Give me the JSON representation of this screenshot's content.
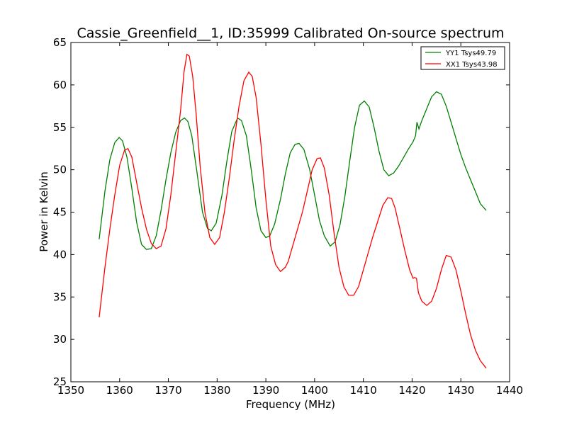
{
  "chart_data": {
    "type": "line",
    "title": "Cassie_Greenfield__1, ID:35999 Calibrated On-source spectrum",
    "xlabel": "Frequency (MHz)",
    "ylabel": "Power in Kelvin",
    "xlim": [
      1350,
      1440
    ],
    "ylim": [
      25,
      65
    ],
    "xticks": [
      1350,
      1360,
      1370,
      1380,
      1390,
      1400,
      1410,
      1420,
      1430,
      1440
    ],
    "yticks": [
      25,
      30,
      35,
      40,
      45,
      50,
      55,
      60,
      65
    ],
    "xtick_labels": [
      "1350",
      "1360",
      "1370",
      "1380",
      "1390",
      "1400",
      "1410",
      "1420",
      "1430",
      "1440"
    ],
    "ytick_labels": [
      "25",
      "30",
      "35",
      "40",
      "45",
      "50",
      "55",
      "60",
      "65"
    ],
    "grid": false,
    "legend_position": "top-right",
    "series": [
      {
        "name": "YY1 Tsys49.79",
        "color": "#008000",
        "x": [
          1355.8,
          1357,
          1358,
          1359,
          1359.9,
          1360.6,
          1361.5,
          1362.5,
          1363.5,
          1364.5,
          1365.5,
          1366.5,
          1367.5,
          1368.5,
          1369.5,
          1370.5,
          1371.5,
          1372.5,
          1373.3,
          1374,
          1374.8,
          1375.8,
          1377,
          1378,
          1378.8,
          1379.8,
          1381,
          1382,
          1383,
          1384.2,
          1385,
          1386,
          1387,
          1388,
          1389,
          1390,
          1390.8,
          1391.8,
          1393,
          1394,
          1395,
          1396,
          1396.8,
          1397.8,
          1399,
          1400,
          1401,
          1402,
          1403.2,
          1404.2,
          1405.2,
          1406.2,
          1407.2,
          1408.2,
          1409.2,
          1410.2,
          1411.2,
          1412.2,
          1413.2,
          1414.2,
          1415.2,
          1416.2,
          1417.2,
          1418.2,
          1419.2,
          1420.2,
          1420.7,
          1421,
          1421.4,
          1422,
          1423,
          1424,
          1425,
          1426,
          1427,
          1428,
          1429,
          1430,
          1431,
          1432,
          1433,
          1434,
          1435.2
        ],
        "y": [
          41.8,
          47.5,
          51.2,
          53.2,
          53.8,
          53.4,
          51.5,
          47.8,
          43.8,
          41.2,
          40.6,
          40.7,
          42.2,
          45.2,
          48.8,
          52.0,
          54.4,
          55.8,
          56.1,
          55.7,
          54.0,
          50.0,
          45.0,
          43.1,
          42.8,
          43.7,
          47.0,
          51.0,
          54.5,
          56.1,
          55.8,
          54.0,
          50.0,
          45.5,
          42.8,
          42.0,
          42.2,
          43.6,
          46.5,
          49.5,
          52.0,
          53.0,
          53.1,
          52.4,
          50.0,
          47.0,
          44.0,
          42.2,
          41.0,
          41.5,
          43.5,
          46.8,
          51.0,
          55.0,
          57.6,
          58.1,
          57.4,
          55.0,
          52.2,
          50.0,
          49.3,
          49.6,
          50.4,
          51.4,
          52.4,
          53.3,
          54.0,
          55.6,
          54.8,
          55.8,
          57.2,
          58.6,
          59.2,
          58.9,
          57.5,
          55.6,
          53.7,
          51.8,
          50.2,
          48.8,
          47.4,
          46.0,
          45.2
        ]
      },
      {
        "name": "XX1 Tsys43.98",
        "color": "#ff0000",
        "x": [
          1355.8,
          1357,
          1358,
          1359,
          1360,
          1361,
          1361.7,
          1362.5,
          1363.5,
          1364.5,
          1365.5,
          1366.5,
          1367.5,
          1368.5,
          1369.5,
          1370.5,
          1371.5,
          1372.5,
          1373.2,
          1373.8,
          1374.3,
          1375,
          1375.7,
          1376.5,
          1377.5,
          1378.5,
          1379.5,
          1380.5,
          1381.5,
          1382.5,
          1383.5,
          1384.5,
          1385.5,
          1386.5,
          1387.2,
          1388,
          1389,
          1390,
          1391,
          1392,
          1393,
          1394,
          1394.6,
          1395.5,
          1396.5,
          1397.5,
          1398.5,
          1399.5,
          1400.5,
          1401.2,
          1402,
          1403,
          1404,
          1405,
          1406,
          1407,
          1408,
          1409,
          1410,
          1411,
          1412,
          1413,
          1414,
          1415,
          1415.8,
          1416.5,
          1417.5,
          1418.5,
          1419.5,
          1420.2,
          1420.5,
          1420.9,
          1421.3,
          1422,
          1423,
          1424,
          1425,
          1426,
          1427,
          1428,
          1429,
          1430,
          1431,
          1432,
          1433,
          1434,
          1435.2
        ],
        "y": [
          32.6,
          38.5,
          43.0,
          47.0,
          50.5,
          52.3,
          52.5,
          51.5,
          48.5,
          45.5,
          43.0,
          41.3,
          40.7,
          41.0,
          43.0,
          47.0,
          52.0,
          57.0,
          61.5,
          63.6,
          63.4,
          61.0,
          56.5,
          50.5,
          45.0,
          42.0,
          41.2,
          42.0,
          45.0,
          49.0,
          53.5,
          57.5,
          60.5,
          61.5,
          61.0,
          58.5,
          53.0,
          46.5,
          41.0,
          38.8,
          38.0,
          38.5,
          39.2,
          41.0,
          43.0,
          45.0,
          47.5,
          50.0,
          51.3,
          51.4,
          50.2,
          47.0,
          42.5,
          38.5,
          36.2,
          35.2,
          35.2,
          36.2,
          38.2,
          40.2,
          42.2,
          44.0,
          45.8,
          46.7,
          46.6,
          45.5,
          43.0,
          40.5,
          38.2,
          37.2,
          37.3,
          37.2,
          35.5,
          34.5,
          34.0,
          34.5,
          36.0,
          38.2,
          39.9,
          39.7,
          38.2,
          35.7,
          33.0,
          30.5,
          28.7,
          27.5,
          26.6
        ]
      }
    ]
  }
}
